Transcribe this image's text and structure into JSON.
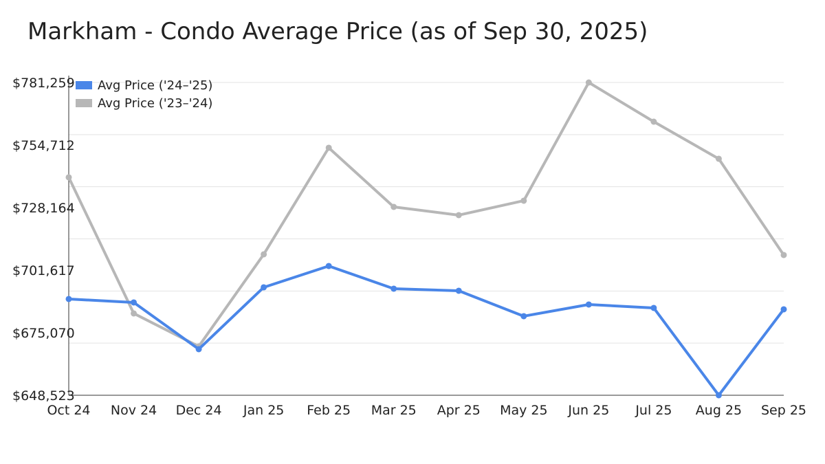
{
  "chart_data": {
    "type": "line",
    "title": "Markham - Condo Average Price (as of Sep 30, 2025)",
    "xlabel": "",
    "ylabel": "",
    "categories": [
      "Oct 24",
      "Nov 24",
      "Dec 24",
      "Jan 25",
      "Feb 25",
      "Mar 25",
      "Apr 25",
      "May 25",
      "Jun 25",
      "Jul 25",
      "Aug 25",
      "Sep 25"
    ],
    "y_tick_labels": [
      "$648,523",
      "$675,070",
      "$701,617",
      "$728,164",
      "$754,712",
      "$781,259"
    ],
    "ylim": [
      648523,
      781259
    ],
    "grid": true,
    "legend_position": "top-left",
    "series": [
      {
        "name": "Avg Price ('24–'25)",
        "color": "#4a86e8",
        "values": [
          689373,
          687914,
          668079,
          694332,
          703375,
          693749,
          692875,
          682081,
          687039,
          685581,
          648523,
          684998
        ]
      },
      {
        "name": "Avg Price ('23–'24)",
        "color": "#b7b7b7",
        "values": [
          741004,
          683248,
          669246,
          708334,
          753547,
          728461,
          724961,
          731087,
          781259,
          764632,
          748880,
          708042
        ]
      }
    ]
  }
}
